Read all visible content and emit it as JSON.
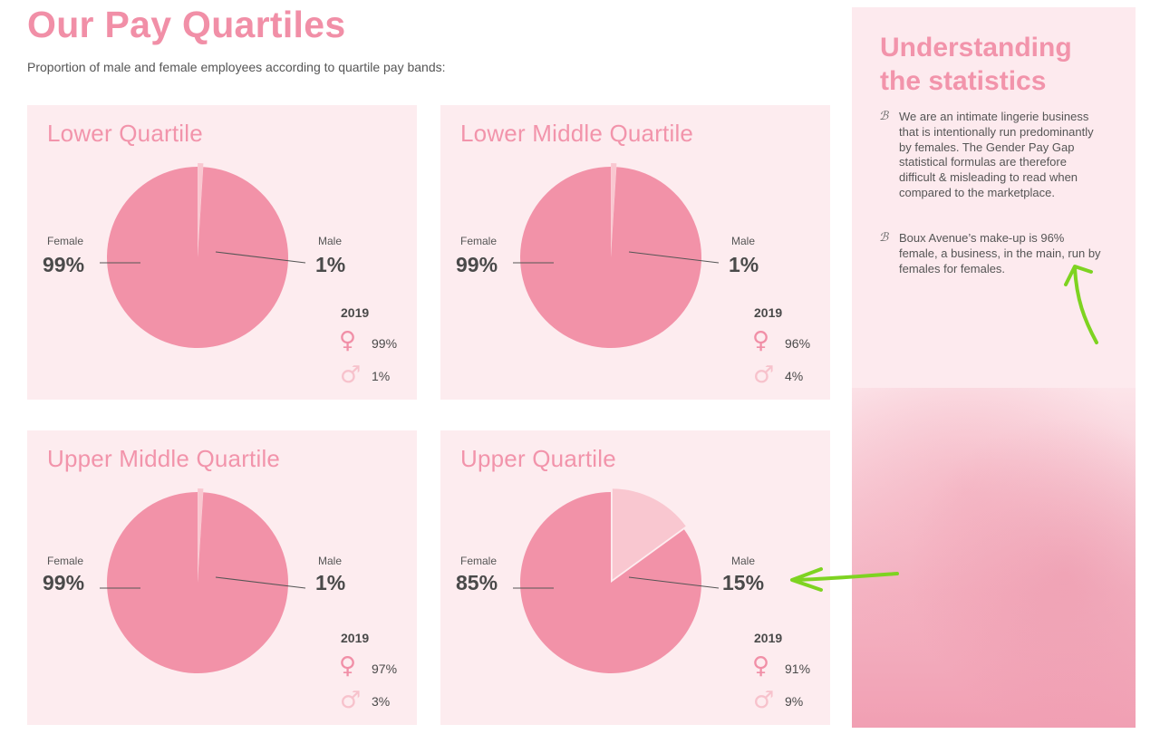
{
  "page": {
    "title": "Our Pay Quartiles",
    "subtitle": "Proportion of male and female employees according to quartile pay bands:"
  },
  "legend_labels": {
    "female": "Female",
    "male": "Male"
  },
  "chart_data": [
    {
      "type": "pie",
      "title": "Lower Quartile",
      "categories": [
        "Female",
        "Male"
      ],
      "values": [
        99,
        1
      ],
      "value_labels": [
        "99%",
        "1%"
      ],
      "colors": [
        "#f292a8",
        "#f9c7d0"
      ],
      "prior": {
        "year": "2019",
        "female": "99%",
        "male": "1%"
      }
    },
    {
      "type": "pie",
      "title": "Lower Middle Quartile",
      "categories": [
        "Female",
        "Male"
      ],
      "values": [
        99,
        1
      ],
      "value_labels": [
        "99%",
        "1%"
      ],
      "colors": [
        "#f292a8",
        "#f9c7d0"
      ],
      "prior": {
        "year": "2019",
        "female": "96%",
        "male": "4%"
      }
    },
    {
      "type": "pie",
      "title": "Upper Middle Quartile",
      "categories": [
        "Female",
        "Male"
      ],
      "values": [
        99,
        1
      ],
      "value_labels": [
        "99%",
        "1%"
      ],
      "colors": [
        "#f292a8",
        "#f9c7d0"
      ],
      "prior": {
        "year": "2019",
        "female": "97%",
        "male": "3%"
      }
    },
    {
      "type": "pie",
      "title": "Upper Quartile",
      "categories": [
        "Female",
        "Male"
      ],
      "values": [
        85,
        15
      ],
      "value_labels": [
        "85%",
        "15%"
      ],
      "colors": [
        "#f292a8",
        "#f9c7d0"
      ],
      "prior": {
        "year": "2019",
        "female": "91%",
        "male": "9%"
      }
    }
  ],
  "sidebar": {
    "title": "Understanding the statistics",
    "bullet_mark": "ℬ",
    "bullets": [
      "We are an intimate lingerie business that is intentionally run predominantly by females. The Gender Pay Gap statistical formulas are therefore difficult & misleading to read when compared to the marketplace.",
      "Boux Avenue’s make-up is 96% female, a business, in the main, run by females for females."
    ]
  },
  "colors": {
    "accent": "#f18fa7",
    "panel_bg": "#fdecef",
    "annotation_green": "#7ed321"
  }
}
